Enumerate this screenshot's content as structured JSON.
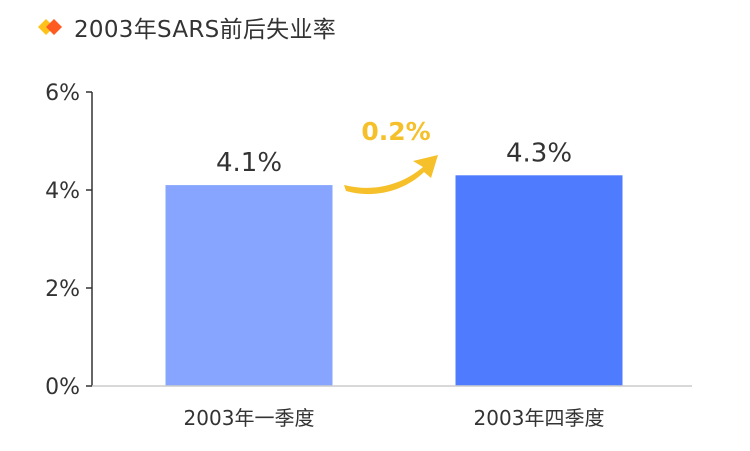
{
  "title": "2003年SARS前后失业率",
  "title_icon": "diamond-icon",
  "colors": {
    "bar1": "#87A5FF",
    "bar2": "#4F7BFF",
    "delta": "#F5C02A",
    "icon_orange": "#FF5A1F",
    "icon_yellow": "#FFC21A"
  },
  "annotation": {
    "text": "0.2%",
    "icon": "curved-arrow-icon"
  },
  "chart_data": {
    "type": "bar",
    "title": "2003年SARS前后失业率",
    "categories": [
      "2003年一季度",
      "2003年四季度"
    ],
    "values": [
      4.1,
      4.3
    ],
    "value_labels": [
      "4.1%",
      "4.3%"
    ],
    "ylim": [
      0,
      6
    ],
    "yticks": [
      0,
      2,
      4,
      6
    ],
    "ytick_labels": [
      "0%",
      "2%",
      "4%",
      "6%"
    ],
    "xlabel": "",
    "ylabel": "",
    "grid": false,
    "legend": "none"
  }
}
